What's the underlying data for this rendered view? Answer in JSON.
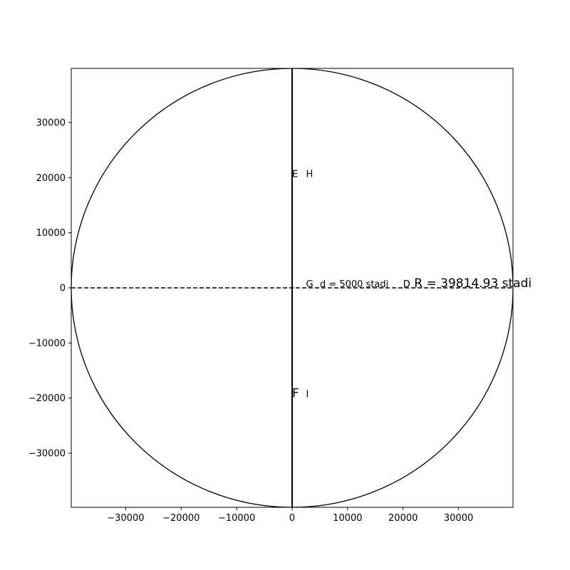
{
  "chart_data": {
    "type": "line",
    "title": "",
    "xlabel": "",
    "ylabel": "",
    "xlim": [
      -39814.93,
      39814.93
    ],
    "ylim": [
      -39814.93,
      39814.93
    ],
    "grid": false,
    "xticks": [
      {
        "value": -30000,
        "label": "−30000"
      },
      {
        "value": -20000,
        "label": "−20000"
      },
      {
        "value": -10000,
        "label": "−10000"
      },
      {
        "value": 0,
        "label": "0"
      },
      {
        "value": 10000,
        "label": "10000"
      },
      {
        "value": 20000,
        "label": "20000"
      },
      {
        "value": 30000,
        "label": "30000"
      }
    ],
    "yticks": [
      {
        "value": 30000,
        "label": "30000"
      },
      {
        "value": 20000,
        "label": "20000"
      },
      {
        "value": 10000,
        "label": "10000"
      },
      {
        "value": 0,
        "label": "0"
      },
      {
        "value": -10000,
        "label": "−10000"
      },
      {
        "value": -20000,
        "label": "−20000"
      },
      {
        "value": -30000,
        "label": "−30000"
      }
    ],
    "circle": {
      "center": [
        0,
        0
      ],
      "radius": 39814.93
    },
    "lines": [
      {
        "style": "solid",
        "x": [
          0,
          0
        ],
        "y": [
          -39814.93,
          39814.93
        ]
      },
      {
        "style": "dashed",
        "x": [
          -39814.93,
          39814.93
        ],
        "y": [
          0,
          0
        ]
      }
    ],
    "annotations": [
      {
        "text": "E",
        "x": 0,
        "y": 20000,
        "size": "small"
      },
      {
        "text": "H",
        "x": 2500,
        "y": 20000,
        "size": "small"
      },
      {
        "text": "G",
        "x": 2500,
        "y": 0,
        "size": "small"
      },
      {
        "text": "d = 5000 stadi",
        "x": 5000,
        "y": 0,
        "size": "small"
      },
      {
        "text": "D",
        "x": 20000,
        "y": 0,
        "size": "small"
      },
      {
        "text": "R = 39814.93 stadi",
        "x": 22000,
        "y": 0,
        "size": "large"
      },
      {
        "text": "F",
        "x": 0,
        "y": -20000,
        "size": "large"
      },
      {
        "text": "I",
        "x": 2500,
        "y": -20000,
        "size": "small"
      }
    ]
  }
}
